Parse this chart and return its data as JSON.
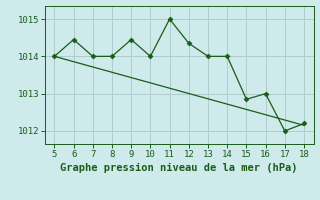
{
  "x": [
    5,
    6,
    7,
    8,
    9,
    10,
    11,
    12,
    13,
    14,
    15,
    16,
    17,
    18
  ],
  "y_line": [
    1014.0,
    1014.45,
    1014.0,
    1014.0,
    1014.45,
    1014.0,
    1015.0,
    1014.35,
    1014.0,
    1014.0,
    1012.85,
    1013.0,
    1012.0,
    1012.2
  ],
  "trend_x": [
    5,
    18
  ],
  "trend_y": [
    1014.0,
    1012.15
  ],
  "line_color": "#1a5c1a",
  "bg_color": "#ceeaea",
  "grid_color_major": "#b0cccc",
  "grid_color_minor": "#c8e0e0",
  "xlabel": "Graphe pression niveau de la mer (hPa)",
  "xlim": [
    4.5,
    18.5
  ],
  "ylim": [
    1011.65,
    1015.35
  ],
  "yticks": [
    1012,
    1013,
    1014,
    1015
  ],
  "xticks": [
    5,
    6,
    7,
    8,
    9,
    10,
    11,
    12,
    13,
    14,
    15,
    16,
    17,
    18
  ],
  "marker": "D",
  "markersize": 2.5,
  "linewidth": 1.0,
  "xlabel_fontsize": 7.5,
  "tick_fontsize": 6.5
}
